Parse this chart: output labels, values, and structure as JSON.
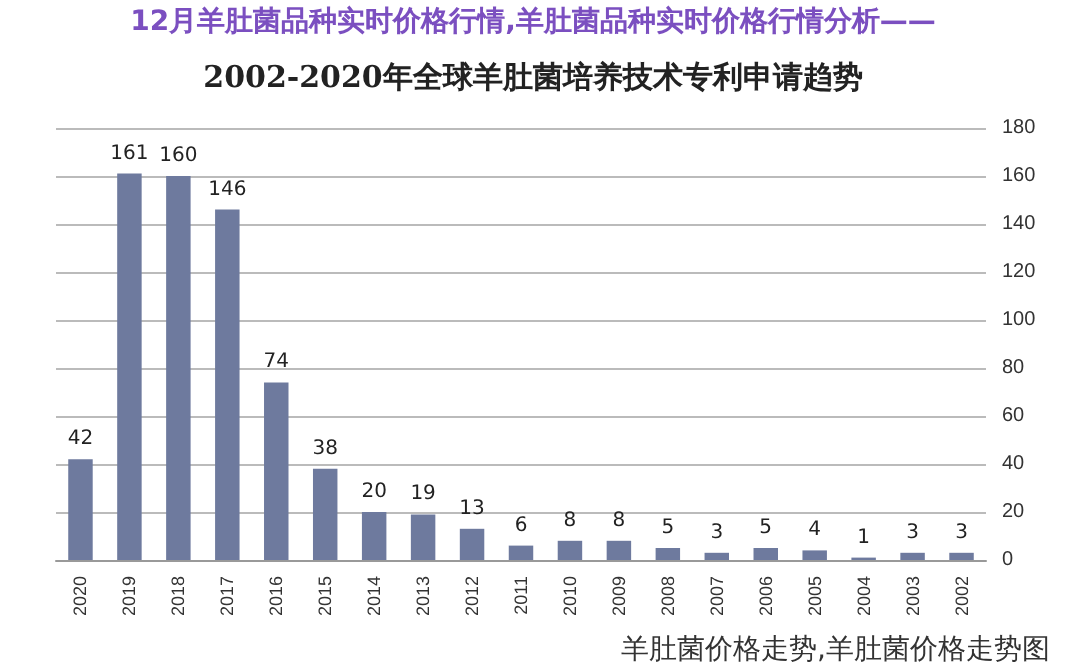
{
  "chart_data": {
    "type": "bar",
    "title": "2002-2020年全球羊肚菌培养技术专利申请趋势",
    "annotations": [
      "12月羊肚菌品种实时价格行情,羊肚菌品种实时价格行情分析——",
      "羊肚菌价格走势,羊肚菌价格走势图"
    ],
    "categories": [
      "2020",
      "2019",
      "2018",
      "2017",
      "2016",
      "2015",
      "2014",
      "2013",
      "2012",
      "2011",
      "2010",
      "2009",
      "2008",
      "2007",
      "2006",
      "2005",
      "2004",
      "2003",
      "2002"
    ],
    "values": [
      42,
      161,
      160,
      146,
      74,
      38,
      20,
      19,
      13,
      6,
      8,
      8,
      5,
      3,
      5,
      4,
      1,
      3,
      3
    ],
    "color": "#6e7a9e",
    "ylim": [
      0,
      180
    ],
    "yticks": [
      0,
      20,
      40,
      60,
      80,
      100,
      120,
      140,
      160,
      180
    ],
    "grid": "y",
    "data_labels": true
  }
}
